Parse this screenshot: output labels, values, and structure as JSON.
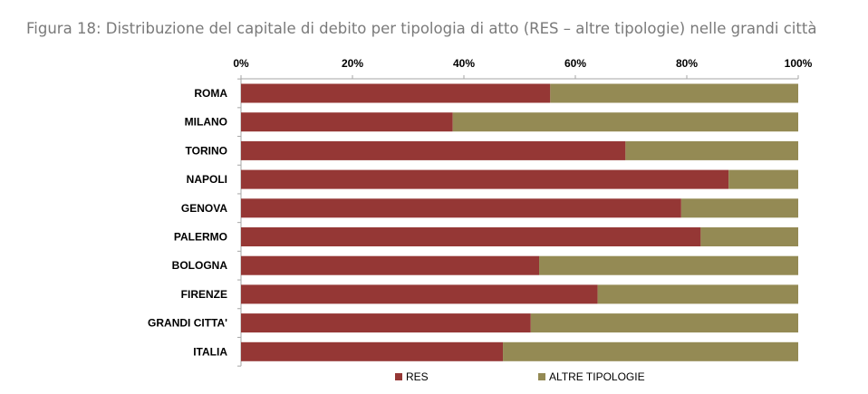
{
  "figure_caption": "Figura 18: Distribuzione del capitale di debito per tipologia di atto (RES – altre tipologie) nelle grandi città",
  "colors": {
    "res": "#953735",
    "altre": "#948a54",
    "axis": "#a6a6a6"
  },
  "chart_data": {
    "type": "bar",
    "orientation": "horizontal",
    "stacked": "percent",
    "title": "",
    "xlabel": "",
    "ylabel": "",
    "xlim": [
      0,
      100
    ],
    "x_ticks": [
      "0%",
      "20%",
      "40%",
      "60%",
      "80%",
      "100%"
    ],
    "x_axis_position": "top",
    "grid": false,
    "legend_position": "bottom",
    "categories": [
      "ROMA",
      "MILANO",
      "TORINO",
      "NAPOLI",
      "GENOVA",
      "PALERMO",
      "BOLOGNA",
      "FIRENZE",
      "GRANDI CITTA'",
      "ITALIA"
    ],
    "series": [
      {
        "name": "RES",
        "color": "#953735",
        "values": [
          55.5,
          38,
          69,
          87.5,
          79,
          82.5,
          53.5,
          64,
          52,
          47
        ]
      },
      {
        "name": "ALTRE TIPOLOGIE",
        "color": "#948a54",
        "values": [
          44.5,
          62,
          31,
          12.5,
          21,
          17.5,
          46.5,
          36,
          48,
          53
        ]
      }
    ]
  }
}
